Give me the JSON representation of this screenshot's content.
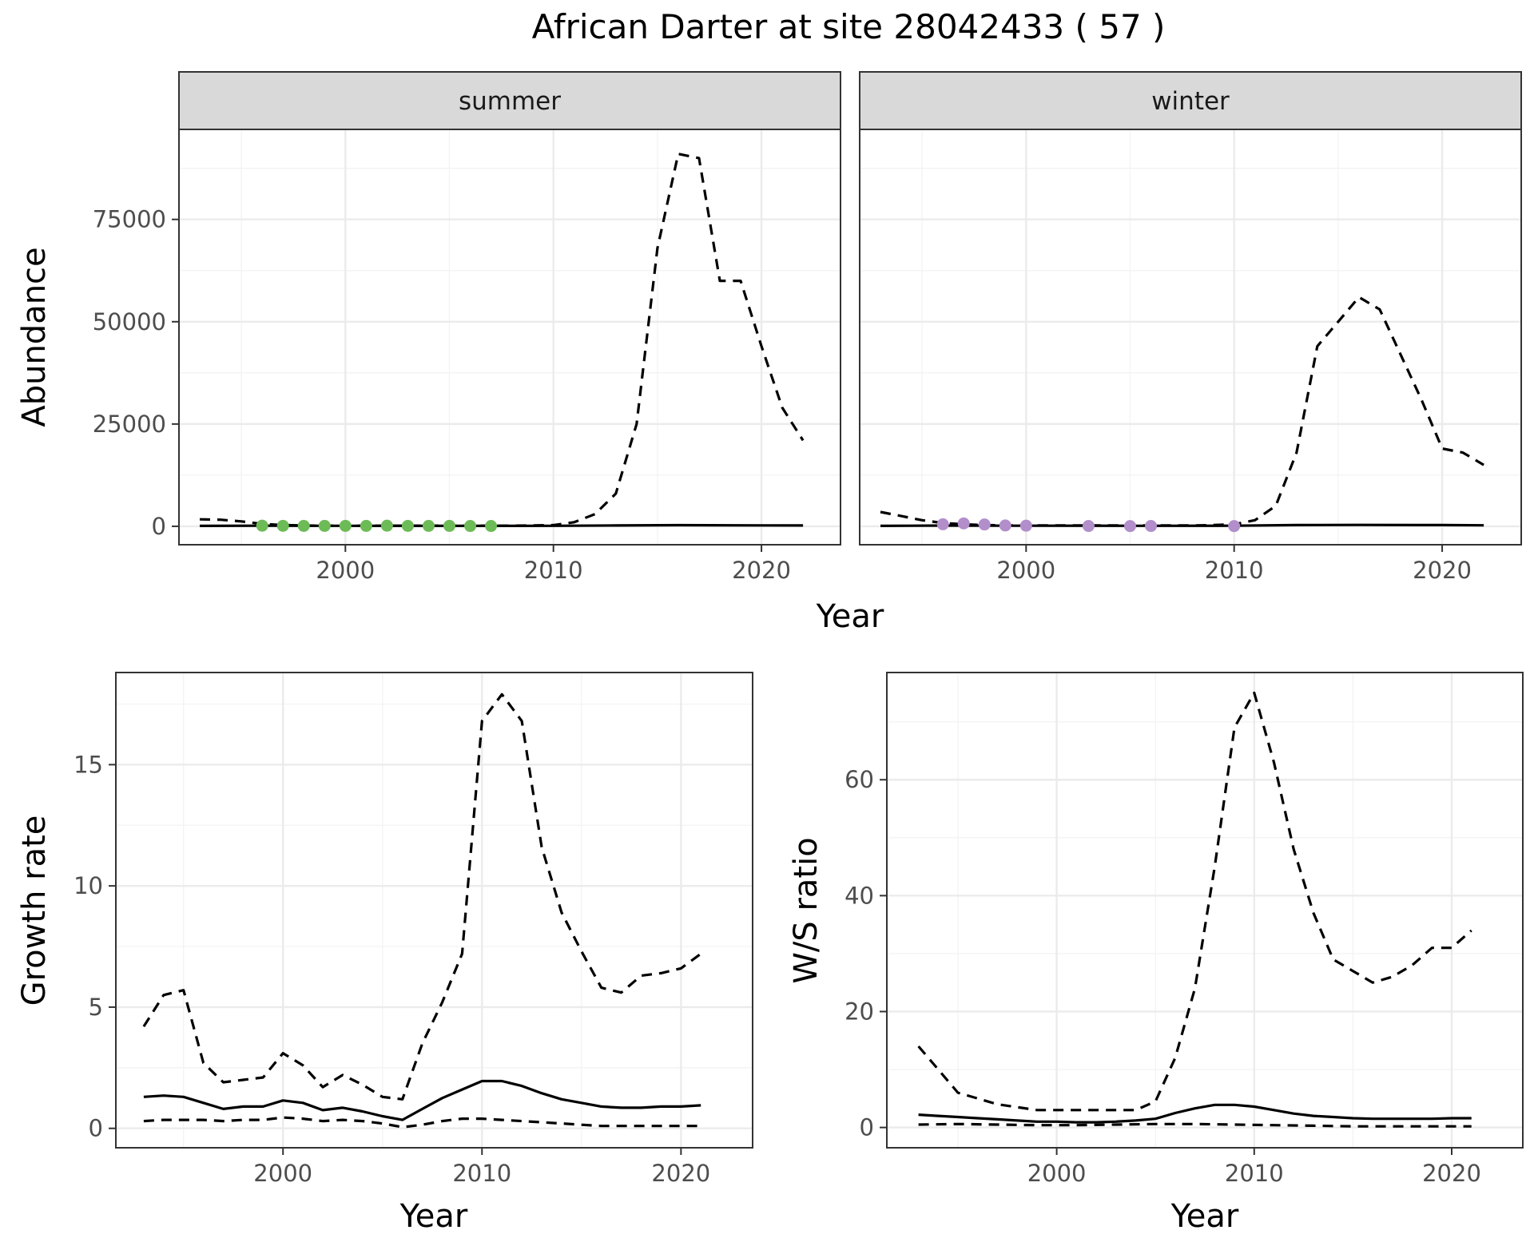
{
  "figure": {
    "title": "African Darter at site 28042433 ( 57 )"
  },
  "chart_data": [
    {
      "id": "abundance",
      "type": "line",
      "title": "",
      "xlabel": "Year",
      "ylabel": "Abundance",
      "xlim": [
        1992.0,
        2023.8
      ],
      "ylim": [
        -4500,
        97000
      ],
      "x_ticks": [
        2000,
        2010,
        2020
      ],
      "y_ticks": [
        0,
        25000,
        50000,
        75000
      ],
      "grid": true,
      "legend": "none",
      "facets": [
        {
          "strip": "summer",
          "point_color": "#6dbb57",
          "series": [
            {
              "style": "solid",
              "x": [
                1993,
                1996,
                2000,
                2005,
                2010,
                2013,
                2016,
                2020,
                2022
              ],
              "y": [
                100,
                150,
                130,
                110,
                120,
                200,
                280,
                220,
                200
              ]
            },
            {
              "style": "dashed",
              "x": [
                1993,
                1994,
                1995,
                1996,
                1997,
                1998,
                1999,
                2000,
                2001,
                2002,
                2003,
                2004,
                2005,
                2006,
                2007,
                2008,
                2009,
                2010,
                2011,
                2012,
                2013,
                2014,
                2015,
                2016,
                2017,
                2018,
                2019,
                2020,
                2021,
                2022
              ],
              "y": [
                1700,
                1600,
                1200,
                600,
                300,
                200,
                150,
                150,
                150,
                150,
                150,
                150,
                150,
                150,
                150,
                150,
                200,
                300,
                1000,
                3000,
                8000,
                25000,
                68000,
                91000,
                90000,
                60000,
                60000,
                44000,
                29000,
                21000
              ]
            }
          ],
          "points": {
            "x": [
              1996,
              1997,
              1998,
              1999,
              2000,
              2001,
              2002,
              2003,
              2004,
              2005,
              2006,
              2007
            ],
            "y": [
              150,
              120,
              100,
              100,
              100,
              100,
              150,
              100,
              100,
              100,
              80,
              80
            ]
          }
        },
        {
          "strip": "winter",
          "point_color": "#b28ecb",
          "series": [
            {
              "style": "solid",
              "x": [
                1993,
                1996,
                2000,
                2005,
                2010,
                2013,
                2016,
                2020,
                2022
              ],
              "y": [
                100,
                180,
                150,
                120,
                150,
                300,
                350,
                300,
                250
              ]
            },
            {
              "style": "dashed",
              "x": [
                1993,
                1994,
                1995,
                1996,
                1997,
                1998,
                1999,
                2000,
                2001,
                2002,
                2003,
                2004,
                2005,
                2006,
                2007,
                2008,
                2009,
                2010,
                2011,
                2012,
                2013,
                2014,
                2015,
                2016,
                2017,
                2018,
                2019,
                2020,
                2021,
                2022
              ],
              "y": [
                3500,
                2500,
                1500,
                800,
                500,
                300,
                200,
                200,
                200,
                200,
                200,
                200,
                200,
                200,
                200,
                200,
                300,
                500,
                1500,
                5000,
                18000,
                44000,
                50000,
                56000,
                53000,
                42000,
                31000,
                19000,
                18000,
                15000
              ]
            }
          ],
          "points": {
            "x": [
              1996,
              1997,
              1998,
              1999,
              2000,
              2003,
              2005,
              2006,
              2010
            ],
            "y": [
              500,
              700,
              450,
              200,
              150,
              80,
              60,
              80,
              60
            ]
          }
        }
      ]
    },
    {
      "id": "growth",
      "type": "line",
      "title": "",
      "xlabel": "Year",
      "ylabel": "Growth rate",
      "xlim": [
        1991.6,
        2023.6
      ],
      "ylim": [
        -0.8,
        18.8
      ],
      "x_ticks": [
        2000,
        2010,
        2020
      ],
      "y_ticks": [
        0,
        5,
        10,
        15
      ],
      "grid": true,
      "legend": "none",
      "series": [
        {
          "style": "dashed",
          "x": [
            1993,
            1994,
            1995,
            1996,
            1997,
            1998,
            1999,
            2000,
            2001,
            2002,
            2003,
            2004,
            2005,
            2006,
            2007,
            2008,
            2009,
            2010,
            2011,
            2012,
            2013,
            2014,
            2015,
            2016,
            2017,
            2018,
            2019,
            2020,
            2021
          ],
          "y": [
            4.2,
            5.5,
            5.7,
            2.7,
            1.9,
            2.0,
            2.1,
            3.1,
            2.6,
            1.7,
            2.2,
            1.8,
            1.3,
            1.2,
            3.5,
            5.2,
            7.2,
            16.8,
            17.9,
            16.8,
            11.6,
            8.9,
            7.3,
            5.8,
            5.6,
            6.3,
            6.4,
            6.6,
            7.2
          ]
        },
        {
          "style": "solid",
          "x": [
            1993,
            1994,
            1995,
            1996,
            1997,
            1998,
            1999,
            2000,
            2001,
            2002,
            2003,
            2004,
            2005,
            2006,
            2007,
            2008,
            2009,
            2010,
            2011,
            2012,
            2013,
            2014,
            2015,
            2016,
            2017,
            2018,
            2019,
            2020,
            2021
          ],
          "y": [
            1.3,
            1.35,
            1.3,
            1.05,
            0.8,
            0.9,
            0.9,
            1.15,
            1.05,
            0.75,
            0.85,
            0.7,
            0.5,
            0.35,
            0.8,
            1.25,
            1.6,
            1.95,
            1.95,
            1.75,
            1.45,
            1.2,
            1.05,
            0.9,
            0.85,
            0.85,
            0.9,
            0.9,
            0.95
          ]
        },
        {
          "style": "dashed",
          "x": [
            1993,
            1994,
            1995,
            1996,
            1997,
            1998,
            1999,
            2000,
            2001,
            2002,
            2003,
            2004,
            2005,
            2006,
            2007,
            2008,
            2009,
            2010,
            2011,
            2012,
            2013,
            2014,
            2015,
            2016,
            2017,
            2018,
            2019,
            2020,
            2021
          ],
          "y": [
            0.3,
            0.35,
            0.35,
            0.35,
            0.3,
            0.35,
            0.35,
            0.45,
            0.4,
            0.3,
            0.35,
            0.3,
            0.2,
            0.05,
            0.15,
            0.3,
            0.4,
            0.4,
            0.35,
            0.3,
            0.25,
            0.2,
            0.15,
            0.1,
            0.1,
            0.1,
            0.1,
            0.1,
            0.1
          ]
        }
      ]
    },
    {
      "id": "ws_ratio",
      "type": "line",
      "title": "",
      "xlabel": "Year",
      "ylabel": "W/S ratio",
      "xlim": [
        1991.4,
        2023.6
      ],
      "ylim": [
        -3.5,
        78.5
      ],
      "x_ticks": [
        2000,
        2010,
        2020
      ],
      "y_ticks": [
        0,
        20,
        40,
        60
      ],
      "grid": true,
      "legend": "none",
      "series": [
        {
          "style": "dashed",
          "x": [
            1993,
            1994,
            1995,
            1996,
            1997,
            1998,
            1999,
            2000,
            2001,
            2002,
            2003,
            2004,
            2005,
            2006,
            2007,
            2008,
            2009,
            2010,
            2011,
            2012,
            2013,
            2014,
            2015,
            2016,
            2017,
            2018,
            2019,
            2020,
            2021
          ],
          "y": [
            14,
            10,
            6,
            5,
            4,
            3.5,
            3,
            3,
            3,
            3,
            3,
            3,
            4.5,
            12,
            24,
            45,
            69,
            75,
            63,
            48,
            37,
            29,
            27,
            25,
            26,
            28,
            31,
            31,
            34
          ]
        },
        {
          "style": "solid",
          "x": [
            1993,
            1994,
            1995,
            1996,
            1997,
            1998,
            1999,
            2000,
            2001,
            2002,
            2003,
            2004,
            2005,
            2006,
            2007,
            2008,
            2009,
            2010,
            2011,
            2012,
            2013,
            2014,
            2015,
            2016,
            2017,
            2018,
            2019,
            2020,
            2021
          ],
          "y": [
            2.2,
            2.0,
            1.8,
            1.6,
            1.4,
            1.2,
            1.0,
            1.0,
            0.9,
            0.9,
            1.0,
            1.2,
            1.5,
            2.5,
            3.3,
            3.9,
            3.9,
            3.6,
            3.0,
            2.4,
            2.0,
            1.8,
            1.6,
            1.5,
            1.5,
            1.5,
            1.5,
            1.6,
            1.6
          ]
        },
        {
          "style": "dashed",
          "x": [
            1993,
            1995,
            1997,
            1999,
            2001,
            2003,
            2005,
            2007,
            2009,
            2011,
            2013,
            2015,
            2017,
            2019,
            2021
          ],
          "y": [
            0.5,
            0.6,
            0.5,
            0.4,
            0.4,
            0.5,
            0.6,
            0.6,
            0.5,
            0.4,
            0.3,
            0.2,
            0.2,
            0.2,
            0.2
          ]
        }
      ]
    }
  ]
}
